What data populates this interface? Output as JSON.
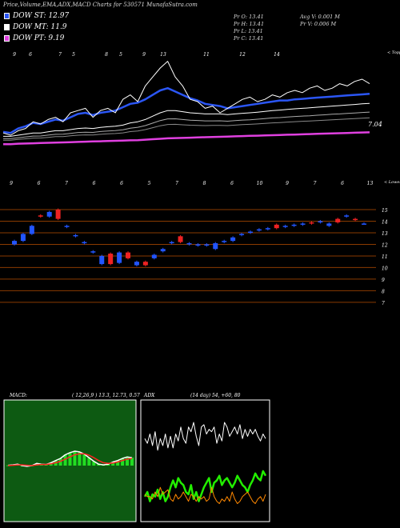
{
  "header": {
    "title": "Price,Volume,EMA,ADX,MACD Charts for 530571 MunafaSutra.com",
    "legend": [
      {
        "label": "DOW ST: 12.97",
        "color": "#2b56f5"
      },
      {
        "label": "DOW MT: 11.9",
        "color": "#ffffff"
      },
      {
        "label": "DOW PT: 9.19",
        "color": "#e040e0"
      }
    ]
  },
  "quote": {
    "pr_o": "Pr  O: 13.41",
    "pr_h": "Pr  H: 13.41",
    "pr_l": "Pr  L: 13.41",
    "pr_c": "Pr  C: 13.41",
    "avg_v": "Avg V: 0.001 M",
    "pr_v": "Pr  V: 0.006  M"
  },
  "colors": {
    "up": "#2255ff",
    "down": "#ee2222",
    "ema_short": "#2b56f5",
    "ema_mid": "#ffffff",
    "ema_long": "#e040e0",
    "grid": "#8a3a00",
    "macd_hist": "#22dd22",
    "macd_signal": "#ff2222",
    "adx_plus": "#22ee00",
    "adx_minus": "#ff8800"
  },
  "chart_data": [
    {
      "type": "line",
      "panel": "ema",
      "date_ticks": [
        "9",
        "6",
        "7",
        "5",
        "8",
        "5",
        "9",
        "13",
        "11",
        "12",
        "14"
      ],
      "top_right_text": "< Topp",
      "last_value_label": "7.04",
      "series": [
        {
          "name": "DOW ST",
          "values": [
            6.15,
            6.1,
            6.3,
            6.4,
            6.55,
            6.5,
            6.6,
            6.7,
            6.65,
            6.8,
            6.95,
            7.0,
            6.9,
            7.0,
            7.05,
            7.1,
            7.25,
            7.4,
            7.45,
            7.6,
            7.8,
            8.0,
            8.1,
            7.95,
            7.8,
            7.65,
            7.55,
            7.4,
            7.35,
            7.3,
            7.2,
            7.25,
            7.3,
            7.35,
            7.4,
            7.45,
            7.5,
            7.55,
            7.55,
            7.6,
            7.62,
            7.65,
            7.68,
            7.7,
            7.72,
            7.75,
            7.78,
            7.8,
            7.82,
            7.85
          ]
        },
        {
          "name": "DOW MT",
          "values": [
            5.95,
            5.95,
            6.0,
            6.05,
            6.1,
            6.1,
            6.15,
            6.2,
            6.2,
            6.25,
            6.3,
            6.32,
            6.3,
            6.35,
            6.38,
            6.4,
            6.45,
            6.55,
            6.6,
            6.7,
            6.85,
            7.0,
            7.1,
            7.1,
            7.05,
            7.0,
            6.98,
            6.95,
            6.95,
            6.95,
            6.92,
            6.95,
            6.98,
            7.0,
            7.03,
            7.06,
            7.1,
            7.12,
            7.15,
            7.18,
            7.2,
            7.22,
            7.25,
            7.27,
            7.3,
            7.32,
            7.35,
            7.37,
            7.4,
            7.42
          ]
        },
        {
          "name": "DOW PT",
          "values": [
            5.6,
            5.6,
            5.62,
            5.63,
            5.64,
            5.65,
            5.66,
            5.67,
            5.68,
            5.69,
            5.7,
            5.71,
            5.72,
            5.73,
            5.74,
            5.75,
            5.76,
            5.77,
            5.78,
            5.8,
            5.82,
            5.84,
            5.86,
            5.87,
            5.88,
            5.89,
            5.9,
            5.91,
            5.92,
            5.93,
            5.94,
            5.95,
            5.96,
            5.97,
            5.98,
            5.99,
            6.0,
            6.01,
            6.02,
            6.03,
            6.04,
            6.05,
            6.06,
            6.07,
            6.08,
            6.09,
            6.1,
            6.11,
            6.12,
            6.13
          ]
        },
        {
          "name": "Price",
          "values": [
            6.1,
            6.0,
            6.2,
            6.3,
            6.6,
            6.5,
            6.7,
            6.8,
            6.6,
            7.0,
            7.1,
            7.2,
            6.8,
            7.1,
            7.2,
            7.0,
            7.6,
            7.8,
            7.5,
            8.2,
            8.6,
            9.0,
            9.3,
            8.6,
            8.2,
            7.6,
            7.5,
            7.2,
            7.3,
            7.0,
            7.2,
            7.4,
            7.6,
            7.7,
            7.5,
            7.6,
            7.8,
            7.7,
            7.9,
            8.0,
            7.9,
            8.1,
            8.2,
            8.0,
            8.1,
            8.3,
            8.2,
            8.4,
            8.5,
            8.3
          ]
        }
      ]
    },
    {
      "type": "candlestick",
      "panel": "price",
      "date_ticks": [
        "9",
        "6",
        "7",
        "6",
        "6",
        "5",
        "7",
        "8",
        "6",
        "10",
        "9",
        "7",
        "6",
        "13"
      ],
      "top_right_text": "< Lowest",
      "y_ticks": [
        15,
        14,
        13,
        12,
        11,
        10,
        9,
        8,
        7
      ],
      "ylim": [
        6.3,
        15.9
      ],
      "candles": [
        {
          "o": 12.0,
          "c": 12.3,
          "up": true
        },
        {
          "o": 12.3,
          "c": 12.9,
          "up": true
        },
        {
          "o": 12.9,
          "c": 13.6,
          "up": true
        },
        {
          "o": 14.4,
          "c": 14.5,
          "up": false
        },
        {
          "o": 14.4,
          "c": 14.8,
          "up": true
        },
        {
          "o": 15.0,
          "c": 14.2,
          "up": false
        },
        {
          "o": 13.6,
          "c": 13.5,
          "up": true
        },
        {
          "o": 12.8,
          "c": 12.7,
          "up": true
        },
        {
          "o": 12.1,
          "c": 12.2,
          "up": true
        },
        {
          "o": 11.3,
          "c": 11.4,
          "up": true
        },
        {
          "o": 11.0,
          "c": 10.3,
          "up": true
        },
        {
          "o": 11.2,
          "c": 10.3,
          "up": false
        },
        {
          "o": 10.4,
          "c": 11.3,
          "up": true
        },
        {
          "o": 11.3,
          "c": 10.8,
          "up": false
        },
        {
          "o": 10.2,
          "c": 10.5,
          "up": true
        },
        {
          "o": 10.5,
          "c": 10.2,
          "up": false
        },
        {
          "o": 10.8,
          "c": 11.1,
          "up": true
        },
        {
          "o": 11.4,
          "c": 11.6,
          "up": true
        },
        {
          "o": 12.1,
          "c": 12.2,
          "up": true
        },
        {
          "o": 12.7,
          "c": 12.2,
          "up": false
        },
        {
          "o": 12.0,
          "c": 12.1,
          "up": true
        },
        {
          "o": 12.0,
          "c": 11.9,
          "up": true
        },
        {
          "o": 11.9,
          "c": 12.0,
          "up": true
        },
        {
          "o": 12.1,
          "c": 11.6,
          "up": true
        },
        {
          "o": 12.2,
          "c": 12.3,
          "up": true
        },
        {
          "o": 12.3,
          "c": 12.6,
          "up": true
        },
        {
          "o": 12.8,
          "c": 12.9,
          "up": true
        },
        {
          "o": 13.0,
          "c": 13.1,
          "up": true
        },
        {
          "o": 13.2,
          "c": 13.3,
          "up": true
        },
        {
          "o": 13.3,
          "c": 13.4,
          "up": true
        },
        {
          "o": 13.7,
          "c": 13.4,
          "up": false
        },
        {
          "o": 13.5,
          "c": 13.6,
          "up": true
        },
        {
          "o": 13.6,
          "c": 13.7,
          "up": true
        },
        {
          "o": 13.7,
          "c": 13.8,
          "up": true
        },
        {
          "o": 13.8,
          "c": 13.9,
          "up": false
        },
        {
          "o": 13.9,
          "c": 14.0,
          "up": true
        },
        {
          "o": 13.6,
          "c": 13.8,
          "up": true
        },
        {
          "o": 13.9,
          "c": 14.2,
          "up": false
        },
        {
          "o": 14.4,
          "c": 14.5,
          "up": true
        },
        {
          "o": 14.2,
          "c": 14.1,
          "up": false
        },
        {
          "o": 13.8,
          "c": 13.8,
          "up": true
        }
      ]
    },
    {
      "type": "line",
      "panel": "macd",
      "title": "MACD",
      "values_text": "( 12,26,9 ) 13.3,  12.73,  0.57",
      "series": [
        {
          "name": "MACD",
          "values": [
            0.02,
            0.05,
            0.1,
            0.0,
            -0.05,
            0.0,
            0.15,
            0.1,
            0.08,
            0.2,
            0.35,
            0.5,
            0.75,
            0.9,
            1.0,
            0.95,
            0.8,
            0.55,
            0.3,
            0.1,
            0.05,
            0.1,
            0.25,
            0.35,
            0.5,
            0.6,
            0.55
          ]
        },
        {
          "name": "Signal",
          "values": [
            0.0,
            0.02,
            0.05,
            0.05,
            0.02,
            0.0,
            0.05,
            0.08,
            0.08,
            0.12,
            0.2,
            0.3,
            0.45,
            0.6,
            0.75,
            0.82,
            0.82,
            0.72,
            0.55,
            0.35,
            0.2,
            0.15,
            0.18,
            0.25,
            0.35,
            0.45,
            0.5
          ]
        }
      ]
    },
    {
      "type": "line",
      "panel": "adx",
      "title": "ADX",
      "values_text": "(14 day) 54,  +60,  80",
      "series": [
        {
          "name": "ADX",
          "values": [
            76,
            72,
            80,
            70,
            82,
            66,
            76,
            70,
            80,
            68,
            78,
            68,
            80,
            74,
            86,
            76,
            72,
            86,
            82,
            90,
            78,
            70,
            86,
            88,
            80,
            84,
            82,
            86,
            72,
            80,
            74,
            90,
            86,
            78,
            82,
            86,
            80,
            88,
            76,
            84,
            78,
            84,
            80,
            84,
            78,
            74,
            80,
            76
          ]
        },
        {
          "name": "+DI",
          "values": [
            26,
            30,
            22,
            28,
            26,
            32,
            24,
            30,
            22,
            26,
            34,
            40,
            34,
            42,
            38,
            36,
            30,
            28,
            36,
            24,
            30,
            22,
            28,
            34,
            38,
            42,
            30,
            38,
            40,
            44,
            36,
            40,
            42,
            38,
            34,
            38,
            44,
            40,
            36,
            34,
            30,
            36,
            40,
            46,
            42,
            40,
            48,
            44
          ]
        },
        {
          "name": "-DI",
          "values": [
            28,
            26,
            26,
            24,
            30,
            26,
            34,
            28,
            30,
            32,
            24,
            22,
            28,
            24,
            26,
            30,
            26,
            22,
            28,
            26,
            22,
            26,
            24,
            26,
            22,
            24,
            34,
            26,
            22,
            20,
            24,
            22,
            26,
            22,
            30,
            24,
            20,
            22,
            26,
            28,
            30,
            26,
            22,
            20,
            24,
            26,
            22,
            28
          ]
        }
      ]
    }
  ]
}
